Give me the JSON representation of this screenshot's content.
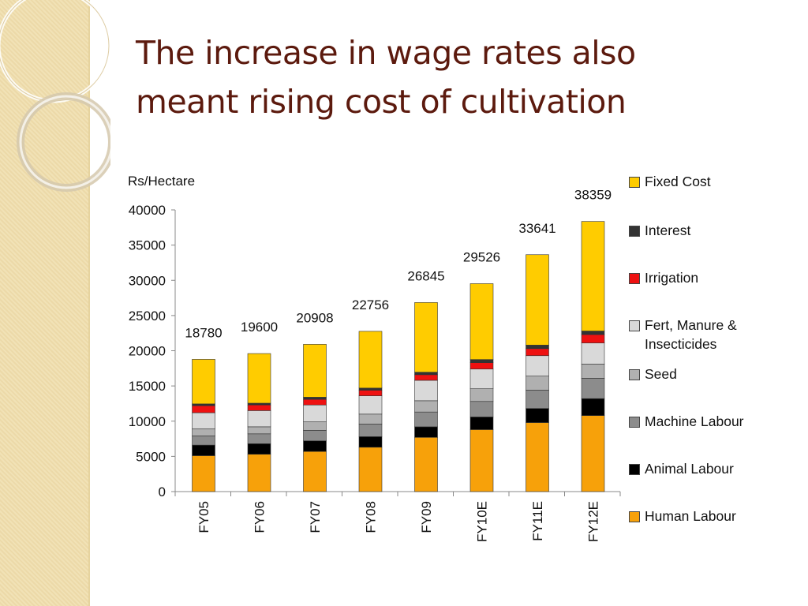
{
  "slide": {
    "title_line1": "The increase in wage rates also",
    "title_line2": "meant rising cost of cultivation"
  },
  "chart_data": {
    "type": "bar",
    "stacked": true,
    "ylabel": "Rs/Hectare",
    "xlabel": "",
    "ylim": [
      0,
      40000
    ],
    "yticks": [
      0,
      5000,
      10000,
      15000,
      20000,
      25000,
      30000,
      35000,
      40000
    ],
    "grid": false,
    "legend_position": "right",
    "categories": [
      "FY05",
      "FY06",
      "FY07",
      "FY08",
      "FY09",
      "FY10E",
      "FY11E",
      "FY12E"
    ],
    "totals": [
      18780,
      19600,
      20908,
      22756,
      26845,
      29526,
      33641,
      38359
    ],
    "series": [
      {
        "name": "Human Labour",
        "color": "#f7a10a",
        "values": [
          5100,
          5300,
          5700,
          6300,
          7700,
          8800,
          9800,
          10800
        ]
      },
      {
        "name": "Animal Labour",
        "color": "#000000",
        "values": [
          1500,
          1500,
          1500,
          1500,
          1500,
          1800,
          2000,
          2400
        ]
      },
      {
        "name": "Machine Labour",
        "color": "#8c8c8c",
        "values": [
          1300,
          1400,
          1500,
          1800,
          2100,
          2200,
          2600,
          2900
        ]
      },
      {
        "name": "Seed",
        "color": "#b0b0b0",
        "values": [
          1000,
          1000,
          1200,
          1400,
          1600,
          1800,
          2000,
          2000
        ]
      },
      {
        "name": "Fert, Manure & Insecticides",
        "color": "#d9d9d9",
        "values": [
          2300,
          2300,
          2400,
          2600,
          2900,
          2800,
          2900,
          3000
        ]
      },
      {
        "name": "Irrigation",
        "color": "#ee1111",
        "values": [
          1000,
          800,
          800,
          800,
          800,
          900,
          1000,
          1200
        ]
      },
      {
        "name": "Interest",
        "color": "#333333",
        "values": [
          250,
          250,
          300,
          300,
          350,
          450,
          500,
          500
        ]
      },
      {
        "name": "Fixed Cost",
        "color": "#ffcc00",
        "values": [
          6330,
          7050,
          7508,
          8056,
          9895,
          10776,
          12841,
          15559
        ]
      }
    ]
  }
}
